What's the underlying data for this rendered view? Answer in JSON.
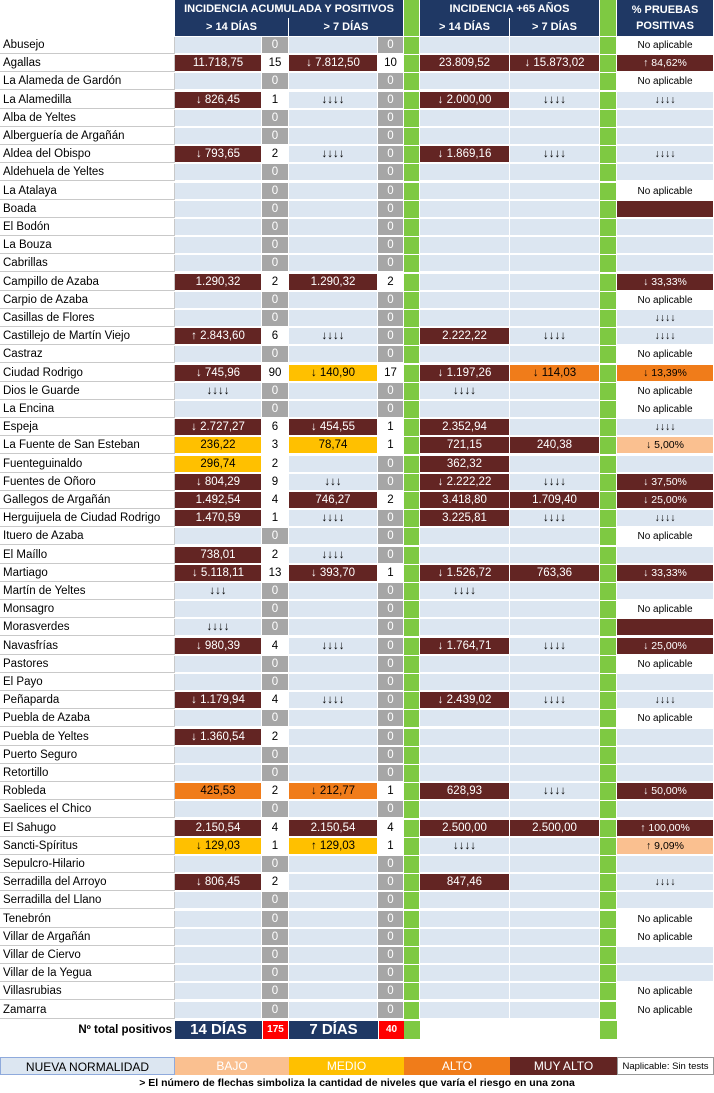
{
  "header": {
    "group1": "INCIDENCIA ACUMULADA Y POSITIVOS",
    "group2": "INCIDENCIA +65 AÑOS",
    "group3_line1": "% PRUEBAS",
    "group3_line2": "POSITIVAS",
    "sub_14": "> 14 DÍAS",
    "sub_7": "> 7 DÍAS",
    "sub65_14": "> 14 DÍAS",
    "sub65_7": "> 7 DÍAS"
  },
  "rows": [
    {
      "name": "Abusejo",
      "a": "",
      "c1": "0",
      "b": "",
      "c2": "0",
      "d": "",
      "e": "",
      "f": "No aplicable",
      "ac": "",
      "bc": "",
      "dc": "",
      "ec": "",
      "fc": "na"
    },
    {
      "name": "Agallas",
      "a": "11.718,75",
      "c1": "15",
      "b": "↓ 7.812,50",
      "c2": "10",
      "d": "23.809,52",
      "e": "↓ 15.873,02",
      "f": "↑ 84,62%",
      "ac": "mm",
      "bc": "mm",
      "dc": "mm",
      "ec": "mm",
      "fc": "mm"
    },
    {
      "name": "La Alameda de Gardón",
      "a": "",
      "c1": "0",
      "b": "",
      "c2": "0",
      "d": "",
      "e": "",
      "f": "No aplicable",
      "ac": "",
      "bc": "",
      "dc": "",
      "ec": "",
      "fc": "na"
    },
    {
      "name": "La Alamedilla",
      "a": "↓ 826,45",
      "c1": "1",
      "b": "↓↓↓↓",
      "c2": "0",
      "d": "↓ 2.000,00",
      "e": "↓↓↓↓",
      "f": "↓↓↓↓",
      "ac": "mm",
      "bc": "",
      "dc": "mm",
      "ec": "",
      "fc": ""
    },
    {
      "name": "Alba de Yeltes",
      "a": "",
      "c1": "0",
      "b": "",
      "c2": "0",
      "d": "",
      "e": "",
      "f": "",
      "ac": "",
      "bc": "",
      "dc": "",
      "ec": "",
      "fc": ""
    },
    {
      "name": "Alberguería de Argañán",
      "a": "",
      "c1": "0",
      "b": "",
      "c2": "0",
      "d": "",
      "e": "",
      "f": "",
      "ac": "",
      "bc": "",
      "dc": "",
      "ec": "",
      "fc": ""
    },
    {
      "name": "Aldea del Obispo",
      "a": "↓ 793,65",
      "c1": "2",
      "b": "↓↓↓↓",
      "c2": "0",
      "d": "↓ 1.869,16",
      "e": "↓↓↓↓",
      "f": "↓↓↓↓",
      "ac": "mm",
      "bc": "",
      "dc": "mm",
      "ec": "",
      "fc": ""
    },
    {
      "name": "Aldehuela de Yeltes",
      "a": "",
      "c1": "0",
      "b": "",
      "c2": "0",
      "d": "",
      "e": "",
      "f": "",
      "ac": "",
      "bc": "",
      "dc": "",
      "ec": "",
      "fc": ""
    },
    {
      "name": "La Atalaya",
      "a": "",
      "c1": "0",
      "b": "",
      "c2": "0",
      "d": "",
      "e": "",
      "f": "No aplicable",
      "ac": "",
      "bc": "",
      "dc": "",
      "ec": "",
      "fc": "na"
    },
    {
      "name": "Boada",
      "a": "",
      "c1": "0",
      "b": "",
      "c2": "0",
      "d": "",
      "e": "",
      "f": "",
      "ac": "",
      "bc": "",
      "dc": "",
      "ec": "",
      "fc": "mm"
    },
    {
      "name": "El Bodón",
      "a": "",
      "c1": "0",
      "b": "",
      "c2": "0",
      "d": "",
      "e": "",
      "f": "",
      "ac": "",
      "bc": "",
      "dc": "",
      "ec": "",
      "fc": ""
    },
    {
      "name": "La Bouza",
      "a": "",
      "c1": "0",
      "b": "",
      "c2": "0",
      "d": "",
      "e": "",
      "f": "",
      "ac": "",
      "bc": "",
      "dc": "",
      "ec": "",
      "fc": ""
    },
    {
      "name": "Cabrillas",
      "a": "",
      "c1": "0",
      "b": "",
      "c2": "0",
      "d": "",
      "e": "",
      "f": "",
      "ac": "",
      "bc": "",
      "dc": "",
      "ec": "",
      "fc": ""
    },
    {
      "name": "Campillo de Azaba",
      "a": "1.290,32",
      "c1": "2",
      "b": "1.290,32",
      "c2": "2",
      "d": "",
      "e": "",
      "f": "↓ 33,33%",
      "ac": "mm",
      "bc": "mm",
      "dc": "",
      "ec": "",
      "fc": "mm"
    },
    {
      "name": "Carpio de Azaba",
      "a": "",
      "c1": "0",
      "b": "",
      "c2": "0",
      "d": "",
      "e": "",
      "f": "No aplicable",
      "ac": "",
      "bc": "",
      "dc": "",
      "ec": "",
      "fc": "na"
    },
    {
      "name": "Casillas de Flores",
      "a": "",
      "c1": "0",
      "b": "",
      "c2": "0",
      "d": "",
      "e": "",
      "f": "↓↓↓↓",
      "ac": "",
      "bc": "",
      "dc": "",
      "ec": "",
      "fc": ""
    },
    {
      "name": "Castillejo de Martín Viejo",
      "a": "↑ 2.843,60",
      "c1": "6",
      "b": "↓↓↓↓",
      "c2": "0",
      "d": "2.222,22",
      "e": "↓↓↓↓",
      "f": "↓↓↓↓",
      "ac": "mm",
      "bc": "",
      "dc": "mm",
      "ec": "",
      "fc": ""
    },
    {
      "name": "Castraz",
      "a": "",
      "c1": "0",
      "b": "",
      "c2": "0",
      "d": "",
      "e": "",
      "f": "No aplicable",
      "ac": "",
      "bc": "",
      "dc": "",
      "ec": "",
      "fc": "na"
    },
    {
      "name": "Ciudad Rodrigo",
      "a": "↓ 745,96",
      "c1": "90",
      "b": "↓ 140,90",
      "c2": "17",
      "d": "↓ 1.197,26",
      "e": "↓ 114,03",
      "f": "↓ 13,39%",
      "ac": "mm",
      "bc": "me",
      "dc": "mm",
      "ec": "al",
      "fc": "al"
    },
    {
      "name": "Dios le Guarde",
      "a": "↓↓↓↓",
      "c1": "0",
      "b": "",
      "c2": "0",
      "d": "↓↓↓↓",
      "e": "",
      "f": "No aplicable",
      "ac": "",
      "bc": "",
      "dc": "",
      "ec": "",
      "fc": "na"
    },
    {
      "name": "La Encina",
      "a": "",
      "c1": "0",
      "b": "",
      "c2": "0",
      "d": "",
      "e": "",
      "f": "No aplicable",
      "ac": "",
      "bc": "",
      "dc": "",
      "ec": "",
      "fc": "na"
    },
    {
      "name": "Espeja",
      "a": "↓ 2.727,27",
      "c1": "6",
      "b": "↓ 454,55",
      "c2": "1",
      "d": "2.352,94",
      "e": "",
      "f": "↓↓↓↓",
      "ac": "mm",
      "bc": "mm",
      "dc": "mm",
      "ec": "",
      "fc": ""
    },
    {
      "name": "La Fuente de San Esteban",
      "a": "236,22",
      "c1": "3",
      "b": "78,74",
      "c2": "1",
      "d": "721,15",
      "e": "240,38",
      "f": "↓ 5,00%",
      "ac": "me",
      "bc": "me",
      "dc": "mm",
      "ec": "mm",
      "fc": "ba"
    },
    {
      "name": "Fuenteguinaldo",
      "a": "296,74",
      "c1": "2",
      "b": "",
      "c2": "0",
      "d": "362,32",
      "e": "",
      "f": "",
      "ac": "me",
      "bc": "",
      "dc": "mm",
      "ec": "",
      "fc": ""
    },
    {
      "name": "Fuentes de Oñoro",
      "a": "↓ 804,29",
      "c1": "9",
      "b": "↓↓↓",
      "c2": "0",
      "d": "↓ 2.222,22",
      "e": "↓↓↓↓",
      "f": "↓ 37,50%",
      "ac": "mm",
      "bc": "",
      "dc": "mm",
      "ec": "",
      "fc": "mm"
    },
    {
      "name": "Gallegos de Argañán",
      "a": "1.492,54",
      "c1": "4",
      "b": "746,27",
      "c2": "2",
      "d": "3.418,80",
      "e": "1.709,40",
      "f": "↓ 25,00%",
      "ac": "mm",
      "bc": "mm",
      "dc": "mm",
      "ec": "mm",
      "fc": "mm"
    },
    {
      "name": "Herguijuela de Ciudad Rodrigo",
      "a": "1.470,59",
      "c1": "1",
      "b": "↓↓↓↓",
      "c2": "0",
      "d": "3.225,81",
      "e": "↓↓↓↓",
      "f": "↓↓↓↓",
      "ac": "mm",
      "bc": "",
      "dc": "mm",
      "ec": "",
      "fc": ""
    },
    {
      "name": "Ituero de Azaba",
      "a": "",
      "c1": "0",
      "b": "",
      "c2": "0",
      "d": "",
      "e": "",
      "f": "No aplicable",
      "ac": "",
      "bc": "",
      "dc": "",
      "ec": "",
      "fc": "na"
    },
    {
      "name": "El Maíllo",
      "a": "738,01",
      "c1": "2",
      "b": "↓↓↓↓",
      "c2": "0",
      "d": "",
      "e": "",
      "f": "",
      "ac": "mm",
      "bc": "",
      "dc": "",
      "ec": "",
      "fc": ""
    },
    {
      "name": "Martiago",
      "a": "↓ 5.118,11",
      "c1": "13",
      "b": "↓ 393,70",
      "c2": "1",
      "d": "↓ 1.526,72",
      "e": "763,36",
      "f": "↓ 33,33%",
      "ac": "mm",
      "bc": "mm",
      "dc": "mm",
      "ec": "mm",
      "fc": "mm"
    },
    {
      "name": "Martín de Yeltes",
      "a": "↓↓↓",
      "c1": "0",
      "b": "",
      "c2": "0",
      "d": "↓↓↓↓",
      "e": "",
      "f": "",
      "ac": "",
      "bc": "",
      "dc": "",
      "ec": "",
      "fc": ""
    },
    {
      "name": "Monsagro",
      "a": "",
      "c1": "0",
      "b": "",
      "c2": "0",
      "d": "",
      "e": "",
      "f": "No aplicable",
      "ac": "",
      "bc": "",
      "dc": "",
      "ec": "",
      "fc": "na"
    },
    {
      "name": "Morasverdes",
      "a": "↓↓↓↓",
      "c1": "0",
      "b": "",
      "c2": "0",
      "d": "",
      "e": "",
      "f": "",
      "ac": "",
      "bc": "",
      "dc": "",
      "ec": "",
      "fc": "mm"
    },
    {
      "name": "Navasfrías",
      "a": "↓ 980,39",
      "c1": "4",
      "b": "↓↓↓↓",
      "c2": "0",
      "d": "↓ 1.764,71",
      "e": "↓↓↓↓",
      "f": "↓ 25,00%",
      "ac": "mm",
      "bc": "",
      "dc": "mm",
      "ec": "",
      "fc": "mm"
    },
    {
      "name": "Pastores",
      "a": "",
      "c1": "0",
      "b": "",
      "c2": "0",
      "d": "",
      "e": "",
      "f": "No aplicable",
      "ac": "",
      "bc": "",
      "dc": "",
      "ec": "",
      "fc": "na"
    },
    {
      "name": "El Payo",
      "a": "",
      "c1": "0",
      "b": "",
      "c2": "0",
      "d": "",
      "e": "",
      "f": "",
      "ac": "",
      "bc": "",
      "dc": "",
      "ec": "",
      "fc": ""
    },
    {
      "name": "Peñaparda",
      "a": "↓ 1.179,94",
      "c1": "4",
      "b": "↓↓↓↓",
      "c2": "0",
      "d": "↓ 2.439,02",
      "e": "↓↓↓↓",
      "f": "↓↓↓↓",
      "ac": "mm",
      "bc": "",
      "dc": "mm",
      "ec": "",
      "fc": ""
    },
    {
      "name": "Puebla de Azaba",
      "a": "",
      "c1": "0",
      "b": "",
      "c2": "0",
      "d": "",
      "e": "",
      "f": "No aplicable",
      "ac": "",
      "bc": "",
      "dc": "",
      "ec": "",
      "fc": "na"
    },
    {
      "name": "Puebla de Yeltes",
      "a": "↓ 1.360,54",
      "c1": "2",
      "b": "",
      "c2": "0",
      "d": "",
      "e": "",
      "f": "",
      "ac": "mm",
      "bc": "",
      "dc": "",
      "ec": "",
      "fc": ""
    },
    {
      "name": "Puerto Seguro",
      "a": "",
      "c1": "0",
      "b": "",
      "c2": "0",
      "d": "",
      "e": "",
      "f": "",
      "ac": "",
      "bc": "",
      "dc": "",
      "ec": "",
      "fc": ""
    },
    {
      "name": "Retortillo",
      "a": "",
      "c1": "0",
      "b": "",
      "c2": "0",
      "d": "",
      "e": "",
      "f": "",
      "ac": "",
      "bc": "",
      "dc": "",
      "ec": "",
      "fc": ""
    },
    {
      "name": "Robleda",
      "a": "425,53",
      "c1": "2",
      "b": "↓ 212,77",
      "c2": "1",
      "d": "628,93",
      "e": "↓↓↓↓",
      "f": "↓ 50,00%",
      "ac": "al",
      "bc": "al",
      "dc": "mm",
      "ec": "",
      "fc": "mm"
    },
    {
      "name": "Saelices el Chico",
      "a": "",
      "c1": "0",
      "b": "",
      "c2": "0",
      "d": "",
      "e": "",
      "f": "",
      "ac": "",
      "bc": "",
      "dc": "",
      "ec": "",
      "fc": ""
    },
    {
      "name": "El Sahugo",
      "a": "2.150,54",
      "c1": "4",
      "b": "2.150,54",
      "c2": "4",
      "d": "2.500,00",
      "e": "2.500,00",
      "f": "↑ 100,00%",
      "ac": "mm",
      "bc": "mm",
      "dc": "mm",
      "ec": "mm",
      "fc": "mm"
    },
    {
      "name": "Sancti-Spíritus",
      "a": "↓ 129,03",
      "c1": "1",
      "b": "↑ 129,03",
      "c2": "1",
      "d": "↓↓↓↓",
      "e": "",
      "f": "↑ 9,09%",
      "ac": "me",
      "bc": "me",
      "dc": "",
      "ec": "",
      "fc": "ba"
    },
    {
      "name": "Sepulcro-Hilario",
      "a": "",
      "c1": "0",
      "b": "",
      "c2": "0",
      "d": "",
      "e": "",
      "f": "",
      "ac": "",
      "bc": "",
      "dc": "",
      "ec": "",
      "fc": ""
    },
    {
      "name": "Serradilla del Arroyo",
      "a": "↓ 806,45",
      "c1": "2",
      "b": "",
      "c2": "0",
      "d": "847,46",
      "e": "",
      "f": "↓↓↓↓",
      "ac": "mm",
      "bc": "",
      "dc": "mm",
      "ec": "",
      "fc": ""
    },
    {
      "name": "Serradilla del Llano",
      "a": "",
      "c1": "0",
      "b": "",
      "c2": "0",
      "d": "",
      "e": "",
      "f": "",
      "ac": "",
      "bc": "",
      "dc": "",
      "ec": "",
      "fc": ""
    },
    {
      "name": "Tenebrón",
      "a": "",
      "c1": "0",
      "b": "",
      "c2": "0",
      "d": "",
      "e": "",
      "f": "No aplicable",
      "ac": "",
      "bc": "",
      "dc": "",
      "ec": "",
      "fc": "na"
    },
    {
      "name": "Villar de Argañán",
      "a": "",
      "c1": "0",
      "b": "",
      "c2": "0",
      "d": "",
      "e": "",
      "f": "No aplicable",
      "ac": "",
      "bc": "",
      "dc": "",
      "ec": "",
      "fc": "na"
    },
    {
      "name": "Villar de Ciervo",
      "a": "",
      "c1": "0",
      "b": "",
      "c2": "0",
      "d": "",
      "e": "",
      "f": "",
      "ac": "",
      "bc": "",
      "dc": "",
      "ec": "",
      "fc": ""
    },
    {
      "name": "Villar de la Yegua",
      "a": "",
      "c1": "0",
      "b": "",
      "c2": "0",
      "d": "",
      "e": "",
      "f": "",
      "ac": "",
      "bc": "",
      "dc": "",
      "ec": "",
      "fc": ""
    },
    {
      "name": "Villasrubias",
      "a": "",
      "c1": "0",
      "b": "",
      "c2": "0",
      "d": "",
      "e": "",
      "f": "No aplicable",
      "ac": "",
      "bc": "",
      "dc": "",
      "ec": "",
      "fc": "na"
    },
    {
      "name": "Zamarra",
      "a": "",
      "c1": "0",
      "b": "",
      "c2": "0",
      "d": "",
      "e": "",
      "f": "No aplicable",
      "ac": "",
      "bc": "",
      "dc": "",
      "ec": "",
      "fc": "na"
    }
  ],
  "totals": {
    "label": "Nº total positivos",
    "box14": "14 DÍAS",
    "num14": "175",
    "box7": "7 DÍAS",
    "num7": "40"
  },
  "legend": {
    "nueva": "NUEVA NORMALIDAD",
    "bajo": "BAJO",
    "medio": "MEDIO",
    "alto": "ALTO",
    "muy_alto": "MUY ALTO",
    "napl": "Naplicable: Sin tests"
  },
  "footnote": "> El número de flechas simboliza la cantidad de niveles que varía el riesgo en una zona",
  "colors": {
    "header": "#1f3864",
    "cell_blue": "#dce6f1",
    "green_separator": "#7ec942",
    "muy_alto": "#632523",
    "alto": "#f07c1a",
    "medio": "#ffc000",
    "bajo": "#fac090",
    "count_zero": "#a6a6a6",
    "total_red": "#ff0000"
  }
}
